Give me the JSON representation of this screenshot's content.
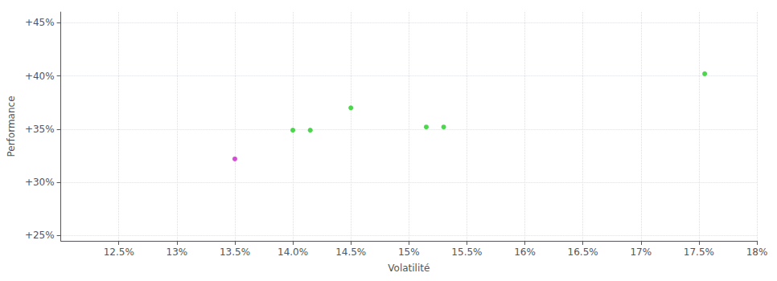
{
  "chart_data": {
    "type": "scatter",
    "xlabel": "Volatilité",
    "ylabel": "Performance",
    "xlim": [
      0.12,
      0.18
    ],
    "ylim": [
      0.245,
      0.46
    ],
    "xticks": [
      {
        "value": 0.125,
        "label": "12.5%"
      },
      {
        "value": 0.13,
        "label": "13%"
      },
      {
        "value": 0.135,
        "label": "13.5%"
      },
      {
        "value": 0.14,
        "label": "14.0%"
      },
      {
        "value": 0.145,
        "label": "14.5%"
      },
      {
        "value": 0.15,
        "label": "15%"
      },
      {
        "value": 0.155,
        "label": "15.5%"
      },
      {
        "value": 0.16,
        "label": "16%"
      },
      {
        "value": 0.165,
        "label": "16.5%"
      },
      {
        "value": 0.17,
        "label": "17%"
      },
      {
        "value": 0.175,
        "label": "17.5%"
      },
      {
        "value": 0.18,
        "label": "18%"
      }
    ],
    "yticks": [
      {
        "value": 0.25,
        "label": "+25%"
      },
      {
        "value": 0.3,
        "label": "+30%"
      },
      {
        "value": 0.35,
        "label": "+35%"
      },
      {
        "value": 0.4,
        "label": "+40%"
      },
      {
        "value": 0.45,
        "label": "+45%"
      }
    ],
    "grid": true,
    "marker": "circle",
    "series": [
      {
        "color": "#22cc22",
        "x": [
          0.14,
          0.1415,
          0.145,
          0.1515,
          0.153,
          0.1755
        ],
        "values": [
          0.349,
          0.349,
          0.37,
          0.352,
          0.352,
          0.402
        ]
      },
      {
        "color": "#cc22cc",
        "x": [
          0.135
        ],
        "values": [
          0.322
        ]
      }
    ]
  }
}
